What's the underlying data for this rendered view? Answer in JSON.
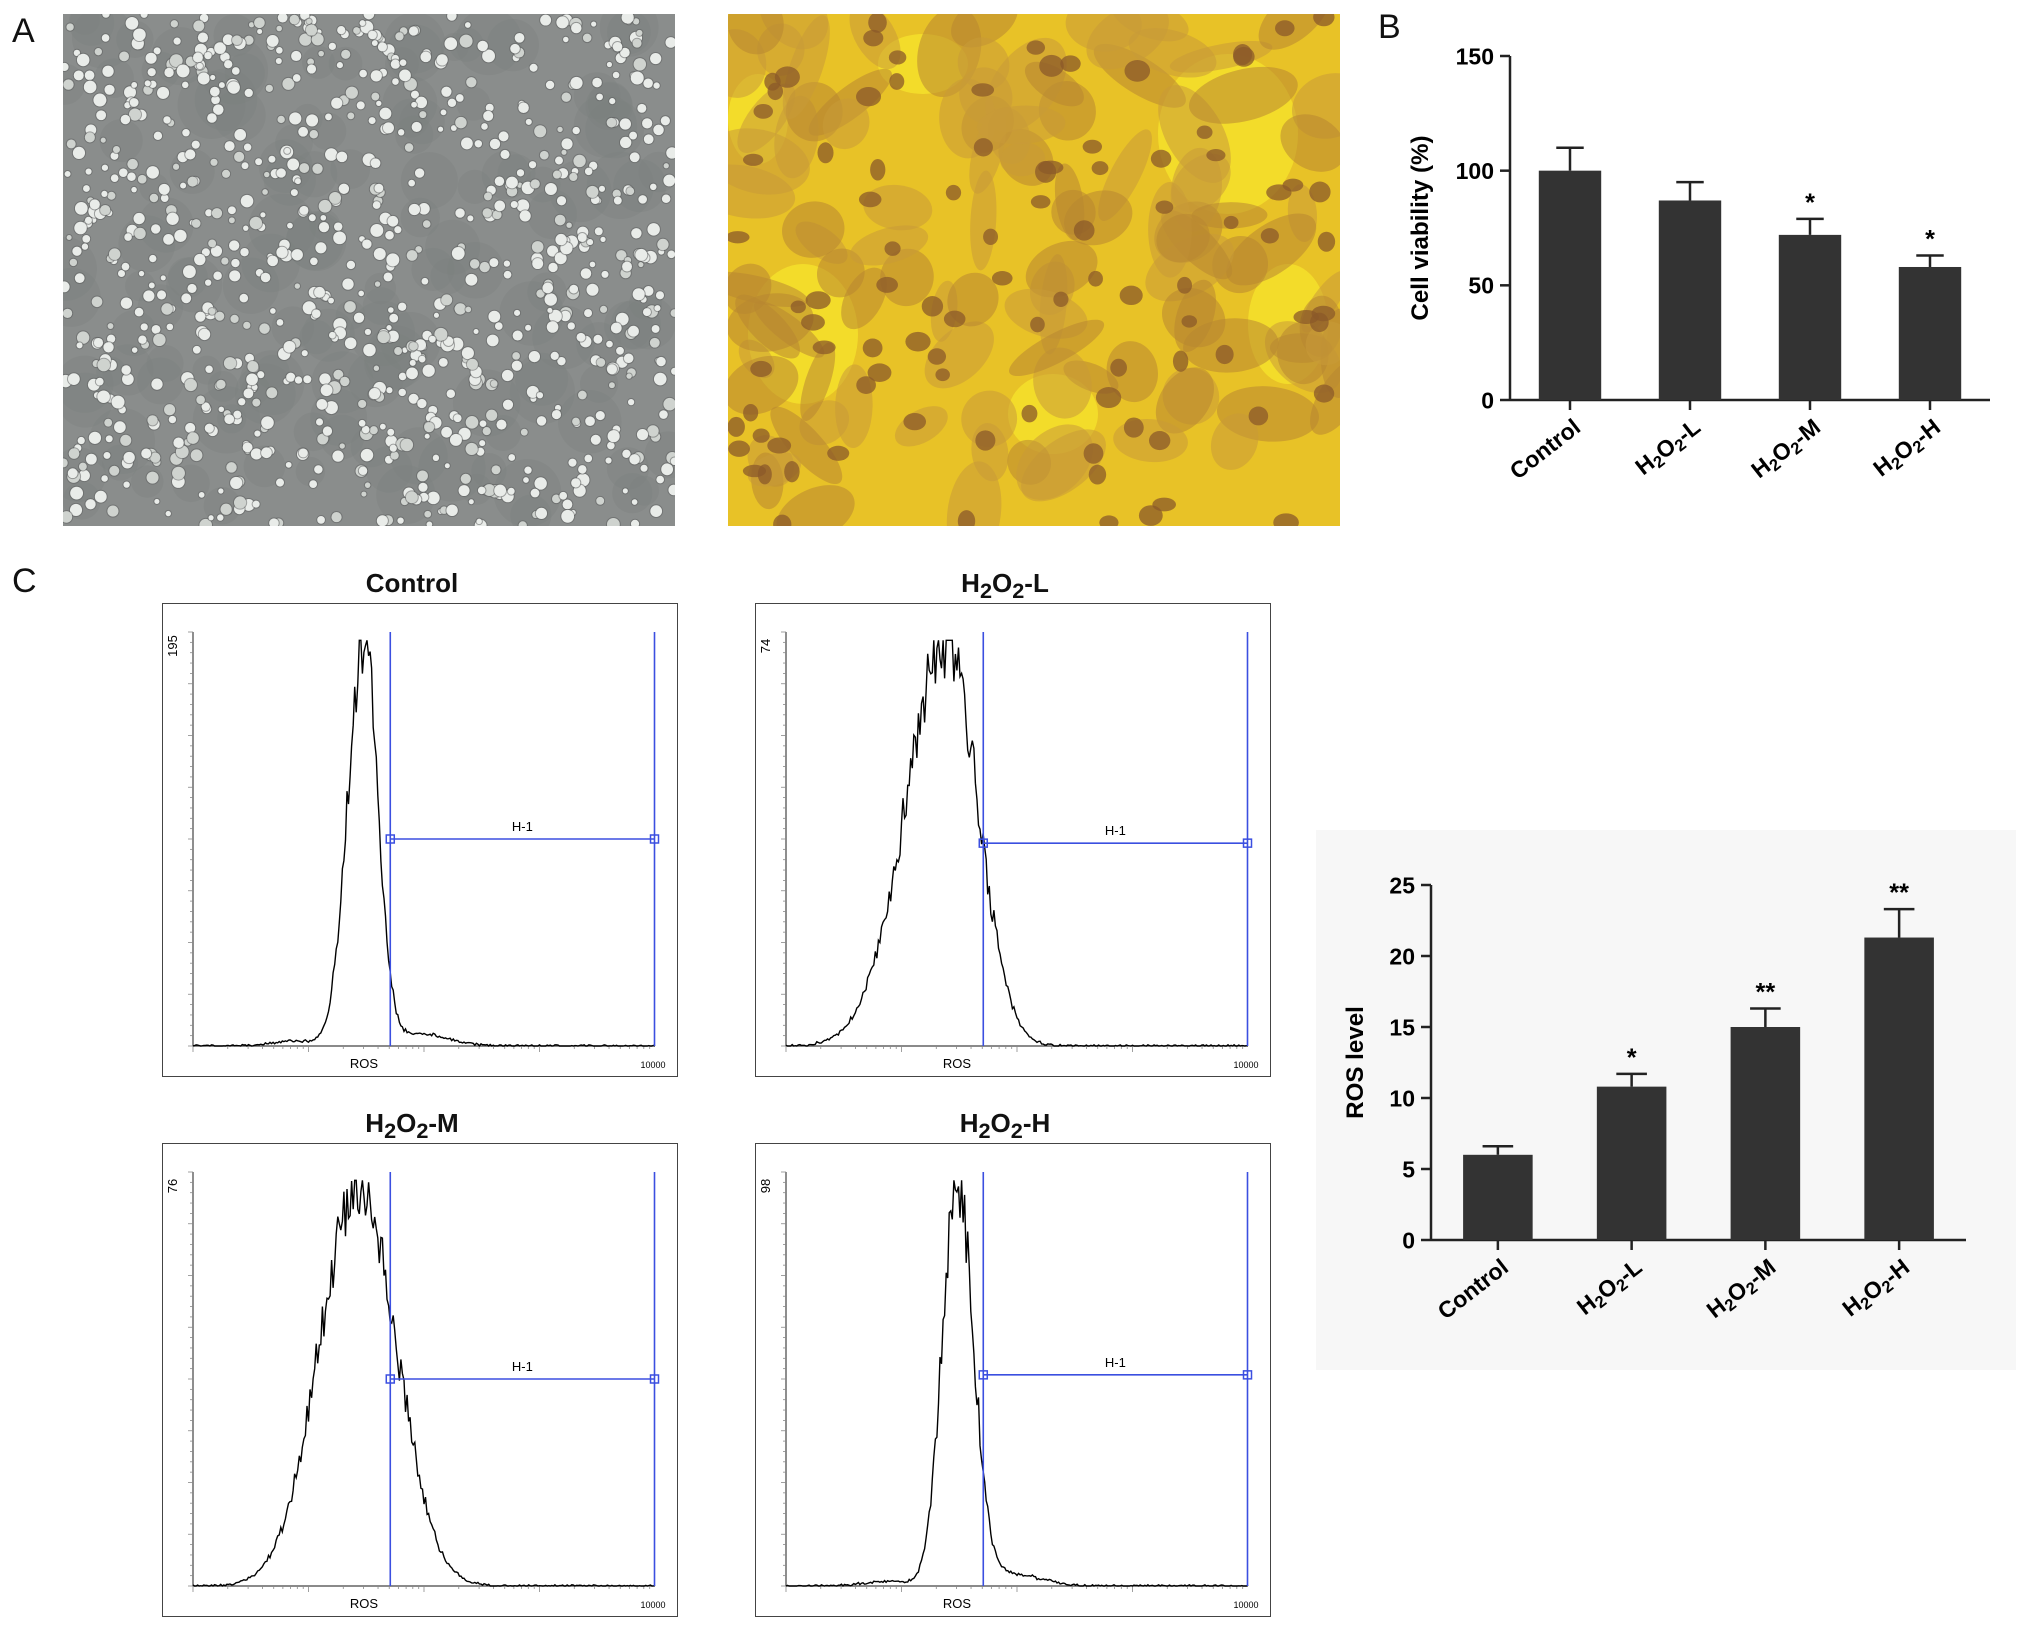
{
  "figure": {
    "panel_labels": {
      "a": "A",
      "b": "B",
      "c": "C"
    },
    "hist_titles": {
      "control": "Control",
      "l": {
        "pre": "H",
        "sub1": "2",
        "mid": "O",
        "sub2": "2",
        "post": "-L"
      },
      "m": {
        "pre": "H",
        "sub1": "2",
        "mid": "O",
        "sub2": "2",
        "post": "-M"
      },
      "h": {
        "pre": "H",
        "sub1": "2",
        "mid": "O",
        "sub2": "2",
        "post": "-H"
      }
    },
    "hist_axis_label": "ROS",
    "hist_gate_label": "H-1",
    "hist_x_max_label": "10000",
    "hist_y_max": {
      "control": "195",
      "l": "74",
      "m": "76",
      "h": "98"
    },
    "photo_colors": {
      "phase": "#8a8d8c",
      "stain": "#e8c227"
    }
  },
  "chart_data": [
    {
      "type": "bar",
      "categories": [
        "Control",
        "H2O2-L",
        "H2O2-M",
        "H2O2-H"
      ],
      "category_parts": [
        {
          "pre": "Control",
          "sub1": "",
          "mid": "",
          "sub2": "",
          "post": ""
        },
        {
          "pre": "H",
          "sub1": "2",
          "mid": "O",
          "sub2": "2",
          "post": "-L"
        },
        {
          "pre": "H",
          "sub1": "2",
          "mid": "O",
          "sub2": "2",
          "post": "-M"
        },
        {
          "pre": "H",
          "sub1": "2",
          "mid": "O",
          "sub2": "2",
          "post": "-H"
        }
      ],
      "values": [
        100,
        87,
        72,
        58
      ],
      "errors": [
        10,
        8,
        7,
        5
      ],
      "significance": [
        "",
        "",
        "*",
        "*"
      ],
      "ylabel": "Cell viability (%)",
      "ylim": [
        0,
        150
      ],
      "yticks": [
        0,
        50,
        100,
        150
      ],
      "bar_color": "#333333"
    },
    {
      "type": "bar",
      "categories": [
        "Control",
        "H2O2-L",
        "H2O2-M",
        "H2O2-H"
      ],
      "category_parts": [
        {
          "pre": "Control",
          "sub1": "",
          "mid": "",
          "sub2": "",
          "post": ""
        },
        {
          "pre": "H",
          "sub1": "2",
          "mid": "O",
          "sub2": "2",
          "post": "-L"
        },
        {
          "pre": "H",
          "sub1": "2",
          "mid": "O",
          "sub2": "2",
          "post": "-M"
        },
        {
          "pre": "H",
          "sub1": "2",
          "mid": "O",
          "sub2": "2",
          "post": "-H"
        }
      ],
      "values": [
        6,
        10.8,
        15,
        21.3
      ],
      "errors": [
        0.6,
        0.9,
        1.3,
        2.0
      ],
      "significance": [
        "",
        "*",
        "**",
        "**"
      ],
      "ylabel": "ROS level",
      "ylim": [
        0,
        25
      ],
      "yticks": [
        0,
        5,
        10,
        15,
        20,
        25
      ],
      "bar_color": "#333333"
    }
  ]
}
